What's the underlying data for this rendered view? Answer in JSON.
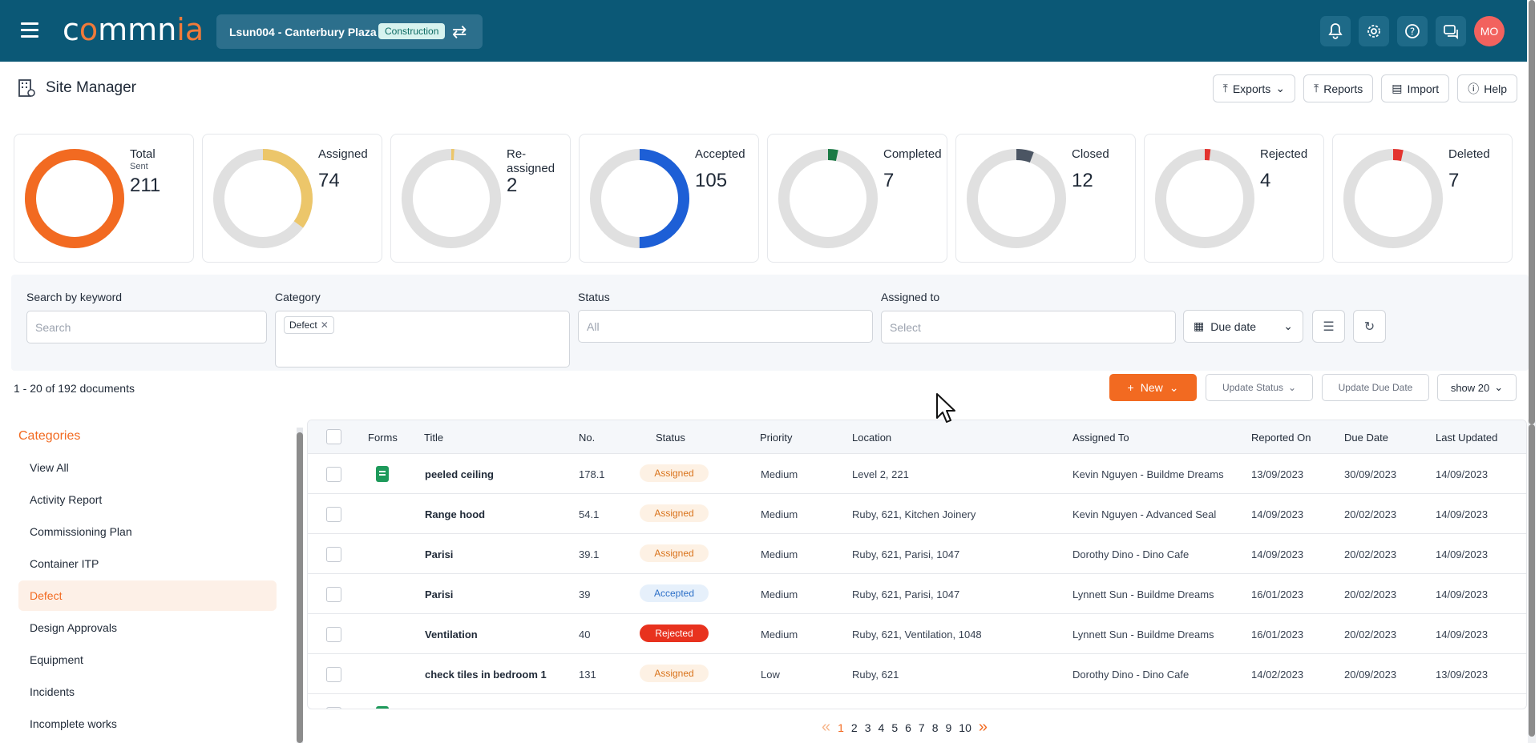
{
  "header": {
    "logo_text": "commnia",
    "project_name": "Lsun004 - Canterbury Plaza",
    "project_badge": "Construction",
    "avatar_initials": "MO"
  },
  "page": {
    "title": "Site Manager",
    "buttons": {
      "exports": "Exports",
      "reports": "Reports",
      "import": "Import",
      "help": "Help"
    }
  },
  "stats": [
    {
      "label": "Total",
      "sublabel": "Sent",
      "count": "211",
      "fraction": 1.0,
      "color": "#f26a21"
    },
    {
      "label": "Assigned",
      "sublabel": "",
      "count": "74",
      "fraction": 0.35,
      "color": "#ecc66a"
    },
    {
      "label": "Re-assigned",
      "sublabel": "",
      "count": "2",
      "fraction": 0.01,
      "color": "#ecc66a"
    },
    {
      "label": "Accepted",
      "sublabel": "",
      "count": "105",
      "fraction": 0.5,
      "color": "#1d5fd6"
    },
    {
      "label": "Completed",
      "sublabel": "",
      "count": "7",
      "fraction": 0.033,
      "color": "#1b7a45"
    },
    {
      "label": "Closed",
      "sublabel": "",
      "count": "12",
      "fraction": 0.057,
      "color": "#4b5563"
    },
    {
      "label": "Rejected",
      "sublabel": "",
      "count": "4",
      "fraction": 0.019,
      "color": "#e3342f"
    },
    {
      "label": "Deleted",
      "sublabel": "",
      "count": "7",
      "fraction": 0.033,
      "color": "#e3342f"
    }
  ],
  "filters": {
    "keyword_label": "Search by keyword",
    "keyword_placeholder": "Search",
    "category_label": "Category",
    "category_chip": "Defect",
    "status_label": "Status",
    "status_placeholder": "All",
    "assigned_label": "Assigned to",
    "assigned_placeholder": "Select",
    "due_date": "Due date"
  },
  "actions": {
    "doc_count": "1 - 20 of 192 documents",
    "new": "New",
    "update_status": "Update Status",
    "update_due_date": "Update Due Date",
    "show": "show 20"
  },
  "sidebar": {
    "title": "Categories",
    "items": [
      "View All",
      "Activity Report",
      "Commissioning Plan",
      "Container ITP",
      "Defect",
      "Design Approvals",
      "Equipment",
      "Incidents",
      "Incomplete works"
    ],
    "active": "Defect"
  },
  "table": {
    "headers": {
      "forms": "Forms",
      "title": "Title",
      "no": "No.",
      "status": "Status",
      "priority": "Priority",
      "location": "Location",
      "assigned_to": "Assigned To",
      "reported_on": "Reported On",
      "due_date": "Due Date",
      "last_updated": "Last Updated"
    },
    "rows": [
      {
        "form": true,
        "title": "peeled ceiling",
        "no": "178.1",
        "status": "Assigned",
        "status_kind": "assigned",
        "priority": "Medium",
        "location": "Level 2, 221",
        "assigned_to": "Kevin Nguyen - Buildme Dreams",
        "reported_on": "13/09/2023",
        "due_date": "30/09/2023",
        "last_updated": "14/09/2023"
      },
      {
        "form": false,
        "title": "Range hood",
        "no": "54.1",
        "status": "Assigned",
        "status_kind": "assigned",
        "priority": "Medium",
        "location": "Ruby, 621, Kitchen Joinery",
        "assigned_to": "Kevin Nguyen - Advanced Seal",
        "reported_on": "14/09/2023",
        "due_date": "20/02/2023",
        "last_updated": "14/09/2023"
      },
      {
        "form": false,
        "title": "Parisi",
        "no": "39.1",
        "status": "Assigned",
        "status_kind": "assigned",
        "priority": "Medium",
        "location": "Ruby, 621, Parisi, 1047",
        "assigned_to": "Dorothy Dino - Dino Cafe",
        "reported_on": "14/09/2023",
        "due_date": "20/02/2023",
        "last_updated": "14/09/2023"
      },
      {
        "form": false,
        "title": "Parisi",
        "no": "39",
        "status": "Accepted",
        "status_kind": "accepted",
        "priority": "Medium",
        "location": "Ruby, 621, Parisi, 1047",
        "assigned_to": "Lynnett Sun - Buildme Dreams",
        "reported_on": "16/01/2023",
        "due_date": "20/02/2023",
        "last_updated": "14/09/2023"
      },
      {
        "form": false,
        "title": "Ventilation",
        "no": "40",
        "status": "Rejected",
        "status_kind": "rejected",
        "priority": "Medium",
        "location": "Ruby, 621, Ventilation, 1048",
        "assigned_to": "Lynnett Sun - Buildme Dreams",
        "reported_on": "16/01/2023",
        "due_date": "20/02/2023",
        "last_updated": "14/09/2023"
      },
      {
        "form": false,
        "title": "check tiles in bedroom 1",
        "no": "131",
        "status": "Assigned",
        "status_kind": "assigned",
        "priority": "Low",
        "location": "Ruby, 621",
        "assigned_to": "Dorothy Dino - Dino Cafe",
        "reported_on": "14/02/2023",
        "due_date": "20/09/2023",
        "last_updated": "13/09/2023"
      }
    ]
  },
  "pagination": {
    "prev": "«",
    "next": "»",
    "pages": [
      "1",
      "2",
      "3",
      "4",
      "5",
      "6",
      "7",
      "8",
      "9",
      "10"
    ],
    "current": "1"
  }
}
